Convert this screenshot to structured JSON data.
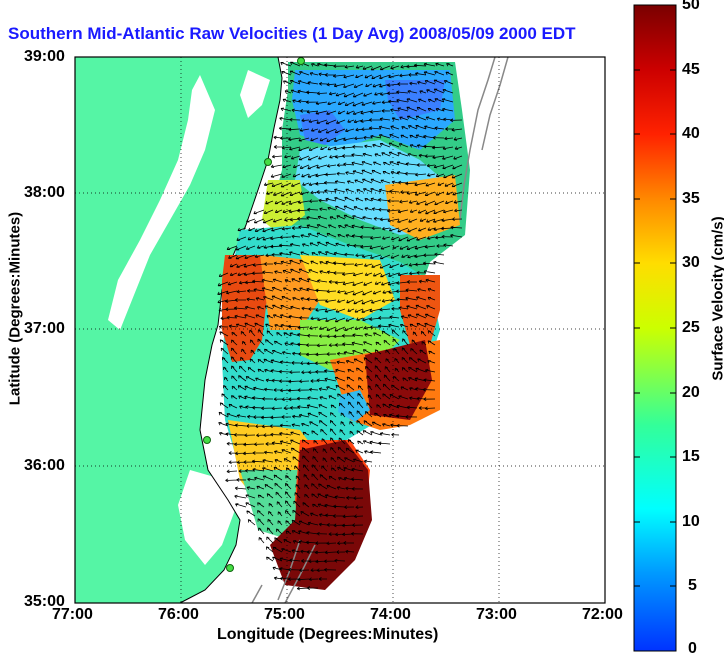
{
  "title": "Southern Mid-Atlantic Raw Velocities (1 Day Avg) 2008/05/09 2000 EDT",
  "xlabel": "Longitude (Degrees:Minutes)",
  "ylabel": "Latitude (Degrees:Minutes)",
  "xticks": [
    "77:00",
    "76:00",
    "75:00",
    "74:00",
    "73:00",
    "72:00"
  ],
  "yticks": [
    "39:00",
    "38:00",
    "37:00",
    "36:00",
    "35:00"
  ],
  "colorbar": {
    "label": "Surface Velocity (cm/s)",
    "ticks": [
      "50",
      "45",
      "40",
      "35",
      "30",
      "25",
      "20",
      "15",
      "10",
      "5",
      "0"
    ],
    "range": [
      0,
      50
    ]
  },
  "colors": {
    "land": "#55f5a5",
    "water": "#ffffff",
    "title": "#1a1aff",
    "station": "#44dd44"
  }
}
